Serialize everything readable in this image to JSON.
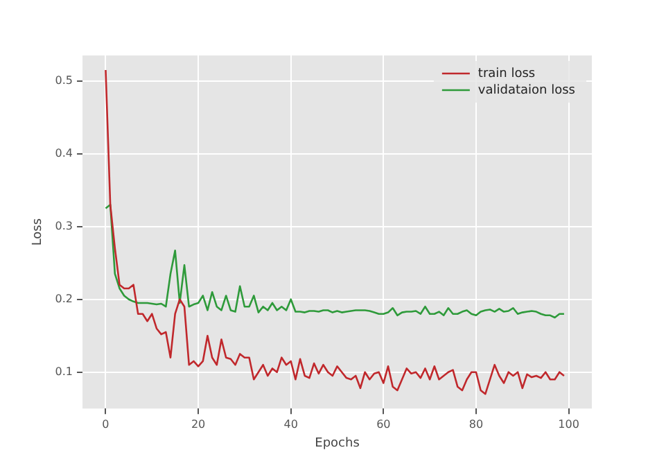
{
  "chart_data": {
    "type": "line",
    "xlabel": "Epochs",
    "ylabel": "Loss",
    "x": [
      0,
      1,
      2,
      3,
      4,
      5,
      6,
      7,
      8,
      9,
      10,
      11,
      12,
      13,
      14,
      15,
      16,
      17,
      18,
      19,
      20,
      21,
      22,
      23,
      24,
      25,
      26,
      27,
      28,
      29,
      30,
      31,
      32,
      33,
      34,
      35,
      36,
      37,
      38,
      39,
      40,
      41,
      42,
      43,
      44,
      45,
      46,
      47,
      48,
      49,
      50,
      51,
      52,
      53,
      54,
      55,
      56,
      57,
      58,
      59,
      60,
      61,
      62,
      63,
      64,
      65,
      66,
      67,
      68,
      69,
      70,
      71,
      72,
      73,
      74,
      75,
      76,
      77,
      78,
      79,
      80,
      81,
      82,
      83,
      84,
      85,
      86,
      87,
      88,
      89,
      90,
      91,
      92,
      93,
      94,
      95,
      96,
      97,
      98,
      99
    ],
    "series": [
      {
        "name": "train loss",
        "color": "#c0282c",
        "values": [
          0.515,
          0.33,
          0.27,
          0.22,
          0.215,
          0.215,
          0.22,
          0.18,
          0.18,
          0.17,
          0.18,
          0.16,
          0.152,
          0.155,
          0.12,
          0.18,
          0.2,
          0.19,
          0.11,
          0.115,
          0.108,
          0.115,
          0.15,
          0.12,
          0.11,
          0.145,
          0.12,
          0.118,
          0.11,
          0.125,
          0.12,
          0.12,
          0.09,
          0.1,
          0.11,
          0.095,
          0.105,
          0.1,
          0.12,
          0.11,
          0.115,
          0.09,
          0.118,
          0.095,
          0.092,
          0.112,
          0.098,
          0.11,
          0.1,
          0.095,
          0.108,
          0.1,
          0.092,
          0.09,
          0.095,
          0.078,
          0.1,
          0.09,
          0.098,
          0.1,
          0.085,
          0.108,
          0.08,
          0.075,
          0.09,
          0.105,
          0.098,
          0.1,
          0.092,
          0.105,
          0.09,
          0.108,
          0.09,
          0.095,
          0.1,
          0.103,
          0.08,
          0.075,
          0.09,
          0.1,
          0.1,
          0.075,
          0.07,
          0.09,
          0.11,
          0.095,
          0.085,
          0.1,
          0.095,
          0.1,
          0.078,
          0.097,
          0.093,
          0.095,
          0.092,
          0.1,
          0.09,
          0.09,
          0.1,
          0.095
        ]
      },
      {
        "name": "validataion loss",
        "color": "#2e9a3a",
        "values": [
          0.325,
          0.33,
          0.235,
          0.215,
          0.205,
          0.2,
          0.197,
          0.195,
          0.195,
          0.195,
          0.194,
          0.193,
          0.194,
          0.19,
          0.235,
          0.267,
          0.195,
          0.247,
          0.19,
          0.193,
          0.195,
          0.205,
          0.185,
          0.21,
          0.19,
          0.185,
          0.205,
          0.185,
          0.183,
          0.218,
          0.19,
          0.19,
          0.205,
          0.182,
          0.19,
          0.185,
          0.195,
          0.185,
          0.19,
          0.185,
          0.2,
          0.183,
          0.183,
          0.182,
          0.184,
          0.184,
          0.183,
          0.185,
          0.185,
          0.182,
          0.184,
          0.182,
          0.183,
          0.184,
          0.185,
          0.185,
          0.185,
          0.184,
          0.182,
          0.18,
          0.18,
          0.182,
          0.188,
          0.178,
          0.182,
          0.183,
          0.183,
          0.184,
          0.18,
          0.19,
          0.18,
          0.18,
          0.183,
          0.178,
          0.188,
          0.18,
          0.18,
          0.183,
          0.185,
          0.18,
          0.178,
          0.183,
          0.185,
          0.186,
          0.183,
          0.187,
          0.183,
          0.184,
          0.188,
          0.18,
          0.182,
          0.183,
          0.184,
          0.183,
          0.18,
          0.178,
          0.178,
          0.175,
          0.18,
          0.18
        ]
      }
    ],
    "xlim": [
      -5,
      105
    ],
    "ylim": [
      0.05,
      0.535
    ],
    "xticks": [
      0,
      20,
      40,
      60,
      80,
      100
    ],
    "yticks": [
      0.1,
      0.2,
      0.3,
      0.4,
      0.5
    ],
    "grid": true,
    "legend": "top right",
    "marker": "none",
    "line_style": "solid"
  }
}
